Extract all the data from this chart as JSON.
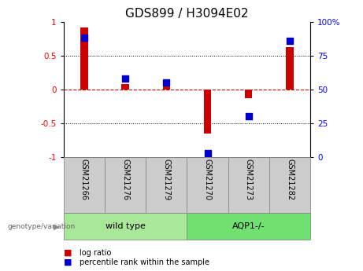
{
  "title": "GDS899 / H3094E02",
  "samples": [
    "GSM21266",
    "GSM21276",
    "GSM21279",
    "GSM21270",
    "GSM21273",
    "GSM21282"
  ],
  "log_ratio": [
    0.92,
    0.08,
    0.09,
    -0.65,
    -0.13,
    0.63
  ],
  "percentile_rank": [
    88,
    58,
    55,
    3,
    30,
    86
  ],
  "groups": [
    {
      "label": "wild type",
      "indices": [
        0,
        1,
        2
      ],
      "color": "#a8e898"
    },
    {
      "label": "AQP1-/-",
      "indices": [
        3,
        4,
        5
      ],
      "color": "#70e070"
    }
  ],
  "group_label": "genotype/variation",
  "ylim_left": [
    -1,
    1
  ],
  "ylim_right": [
    0,
    100
  ],
  "left_ticks": [
    -1,
    -0.5,
    0,
    0.5,
    1
  ],
  "left_tick_labels": [
    "-1",
    "-0.5",
    "0",
    "0.5",
    "1"
  ],
  "right_ticks": [
    0,
    25,
    50,
    75,
    100
  ],
  "right_tick_labels": [
    "0",
    "25",
    "50",
    "75",
    "100%"
  ],
  "bar_color": "#cc0000",
  "dot_color": "#0000cc",
  "zero_line_color": "#cc0000",
  "bg_color": "#ffffff",
  "sample_box_color": "#cccccc",
  "tick_label_size": 7.5,
  "title_size": 11,
  "bar_width": 0.18,
  "dot_size": 28,
  "legend_items": [
    {
      "label": "log ratio",
      "color": "#cc0000"
    },
    {
      "label": "percentile rank within the sample",
      "color": "#0000cc"
    }
  ]
}
